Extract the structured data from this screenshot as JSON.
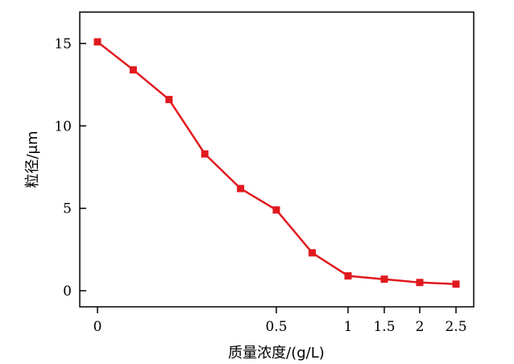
{
  "chart_data": {
    "type": "line",
    "xlabel": "质量浓度/(g/L)",
    "ylabel": "粒径/μm",
    "x_tick_labels": [
      "0",
      "0.5",
      "1",
      "1.5",
      "2",
      "2.5"
    ],
    "x_tick_values": [
      0,
      0.5,
      1,
      1.5,
      2,
      2.5
    ],
    "y_ticks": [
      0,
      5,
      10,
      15
    ],
    "ylim": [
      -1,
      17
    ],
    "grid": false,
    "series": [
      {
        "color": "#e0191e",
        "marker": "square",
        "x": [
          0,
          0.1,
          0.2,
          0.3,
          0.4,
          0.5,
          0.75,
          1,
          1.5,
          2,
          2.5
        ],
        "y": [
          15.1,
          13.4,
          11.6,
          8.3,
          6.2,
          4.9,
          2.3,
          0.9,
          0.7,
          0.5,
          0.4
        ]
      }
    ]
  }
}
